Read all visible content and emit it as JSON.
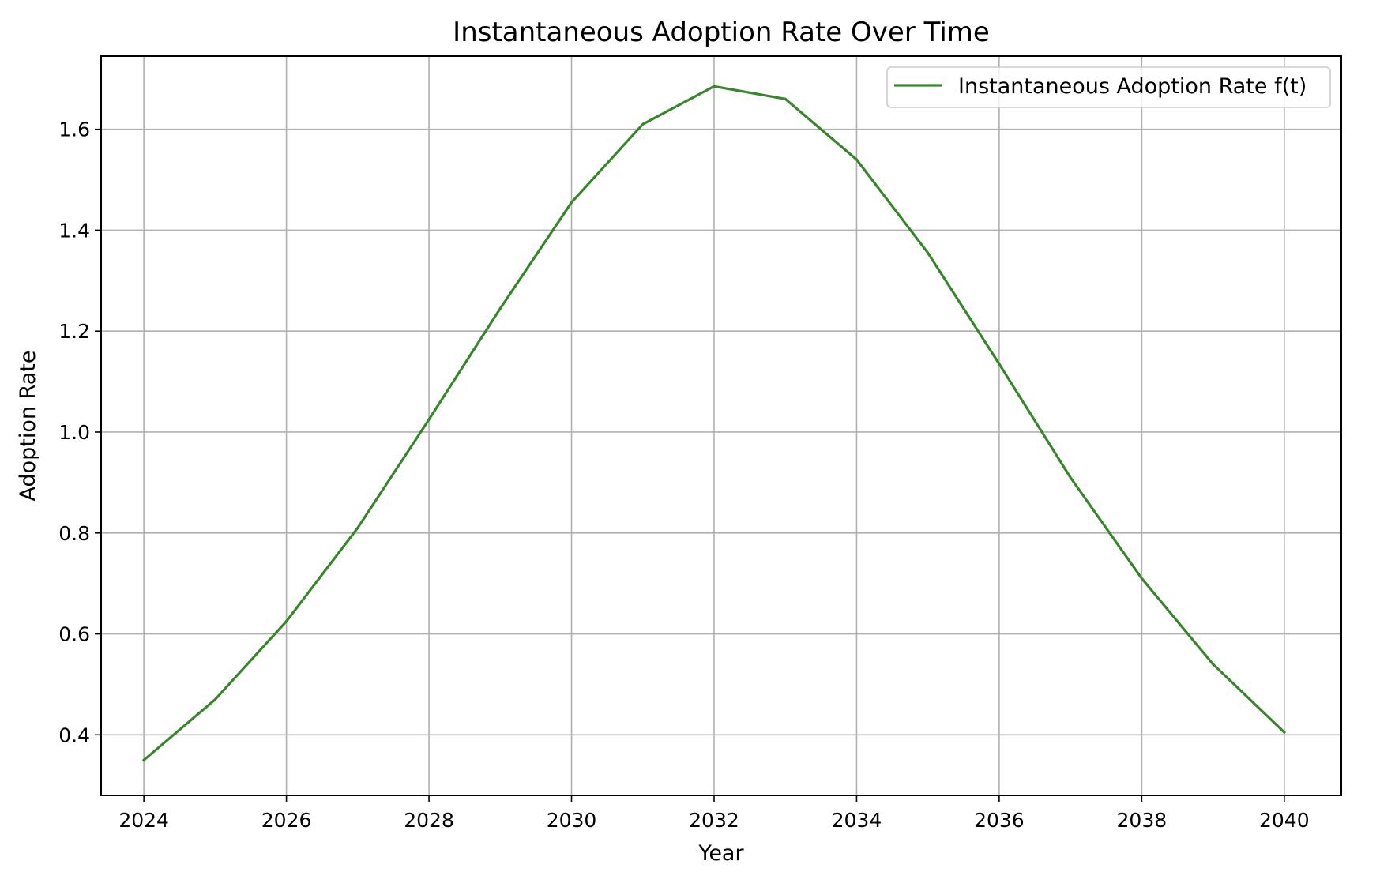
{
  "chart_data": {
    "type": "line",
    "title": "Instantaneous Adoption Rate Over Time",
    "xlabel": "Year",
    "ylabel": "Adoption Rate",
    "xlim": [
      2023.4,
      2040.8
    ],
    "ylim": [
      0.28,
      1.745
    ],
    "xticks": [
      2024,
      2026,
      2028,
      2030,
      2032,
      2034,
      2036,
      2038,
      2040
    ],
    "yticks": [
      0.4,
      0.6,
      0.8,
      1.0,
      1.2,
      1.4,
      1.6
    ],
    "grid": true,
    "legend_position": "top-right",
    "series": [
      {
        "name": "Instantaneous Adoption Rate f(t)",
        "color": "#38862c",
        "x": [
          2024,
          2025,
          2026,
          2027,
          2028,
          2029,
          2030,
          2031,
          2032,
          2033,
          2034,
          2035,
          2036,
          2037,
          2038,
          2039,
          2040
        ],
        "y": [
          0.35,
          0.47,
          0.625,
          0.81,
          1.025,
          1.245,
          1.455,
          1.61,
          1.685,
          1.66,
          1.54,
          1.355,
          1.135,
          0.91,
          0.71,
          0.54,
          0.405
        ]
      }
    ]
  }
}
